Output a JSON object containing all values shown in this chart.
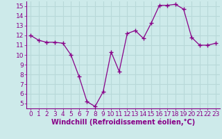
{
  "x": [
    0,
    1,
    2,
    3,
    4,
    5,
    6,
    7,
    8,
    9,
    10,
    11,
    12,
    13,
    14,
    15,
    16,
    17,
    18,
    19,
    20,
    21,
    22,
    23
  ],
  "y": [
    12,
    11.5,
    11.3,
    11.3,
    11.2,
    10.0,
    7.8,
    5.2,
    4.7,
    6.2,
    10.3,
    8.3,
    12.2,
    12.5,
    11.7,
    13.3,
    15.1,
    15.1,
    15.2,
    14.7,
    11.8,
    11.0,
    11.0,
    11.2
  ],
  "xlim": [
    -0.5,
    23.5
  ],
  "ylim": [
    4.5,
    15.5
  ],
  "yticks": [
    5,
    6,
    7,
    8,
    9,
    10,
    11,
    12,
    13,
    14,
    15
  ],
  "xticks": [
    0,
    1,
    2,
    3,
    4,
    5,
    6,
    7,
    8,
    9,
    10,
    11,
    12,
    13,
    14,
    15,
    16,
    17,
    18,
    19,
    20,
    21,
    22,
    23
  ],
  "xlabel": "Windchill (Refroidissement éolien,°C)",
  "line_color": "#880088",
  "marker": "P",
  "marker_size": 2.8,
  "bg_color": "#cdeaea",
  "grid_color": "#b8d8d8",
  "tick_label_fontsize": 6.5,
  "xlabel_fontsize": 7.0
}
